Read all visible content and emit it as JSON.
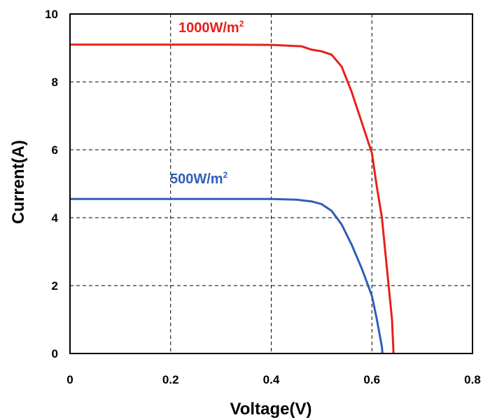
{
  "chart_data": {
    "type": "line",
    "title": "",
    "xlabel": "Voltage(V)",
    "ylabel": "Current(A)",
    "xlim": [
      0,
      0.8
    ],
    "ylim": [
      0,
      10
    ],
    "x_ticks": [
      "0",
      "0.2",
      "0.4",
      "0.6",
      "0.8"
    ],
    "x_tick_values": [
      0,
      0.2,
      0.4,
      0.6,
      0.8
    ],
    "y_ticks": [
      "0",
      "2",
      "4",
      "6",
      "8",
      "10"
    ],
    "y_tick_values": [
      0,
      2,
      4,
      6,
      8,
      10
    ],
    "grid": true,
    "grid_style": "dashed",
    "legend": "inline labels",
    "series": [
      {
        "name": "1000W/m",
        "name_superscript": "2",
        "color": "#e8201a",
        "points": [
          [
            0.0,
            9.1
          ],
          [
            0.1,
            9.1
          ],
          [
            0.2,
            9.1
          ],
          [
            0.3,
            9.1
          ],
          [
            0.4,
            9.09
          ],
          [
            0.46,
            9.05
          ],
          [
            0.48,
            8.95
          ],
          [
            0.5,
            8.9
          ],
          [
            0.52,
            8.8
          ],
          [
            0.54,
            8.45
          ],
          [
            0.56,
            7.7
          ],
          [
            0.58,
            6.8
          ],
          [
            0.6,
            5.9
          ],
          [
            0.61,
            4.9
          ],
          [
            0.62,
            4.0
          ],
          [
            0.63,
            2.5
          ],
          [
            0.64,
            1.0
          ],
          [
            0.643,
            0.0
          ]
        ]
      },
      {
        "name": "500W/m",
        "name_superscript": "2",
        "color": "#2f5fb7",
        "points": [
          [
            0.0,
            4.55
          ],
          [
            0.1,
            4.55
          ],
          [
            0.2,
            4.55
          ],
          [
            0.3,
            4.55
          ],
          [
            0.4,
            4.55
          ],
          [
            0.45,
            4.53
          ],
          [
            0.48,
            4.48
          ],
          [
            0.5,
            4.4
          ],
          [
            0.52,
            4.2
          ],
          [
            0.54,
            3.8
          ],
          [
            0.56,
            3.2
          ],
          [
            0.58,
            2.5
          ],
          [
            0.6,
            1.7
          ],
          [
            0.61,
            1.0
          ],
          [
            0.62,
            0.2
          ],
          [
            0.621,
            0.0
          ]
        ]
      }
    ]
  }
}
